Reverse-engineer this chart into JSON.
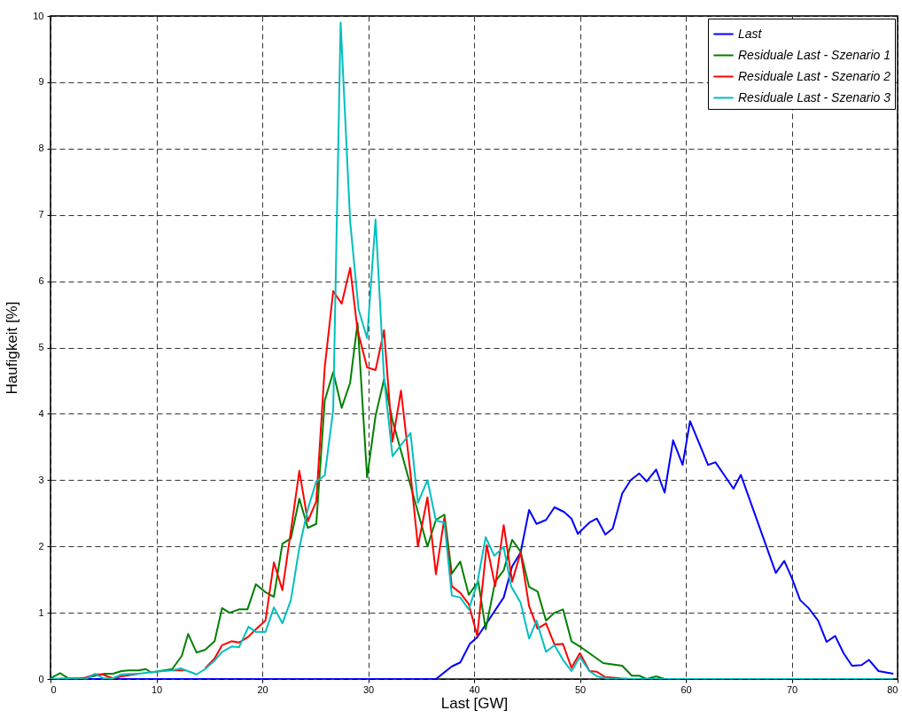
{
  "chart_data": {
    "type": "line",
    "xlabel": "Last [GW]",
    "ylabel": "Haufigkeit [%]",
    "xlim": [
      0,
      80
    ],
    "ylim": [
      0,
      10
    ],
    "xticks": [
      0,
      10,
      20,
      30,
      40,
      50,
      60,
      70,
      80
    ],
    "yticks": [
      0,
      1,
      2,
      3,
      4,
      5,
      6,
      7,
      8,
      9,
      10
    ],
    "grid": true,
    "legend": "top right",
    "line_style": "solid",
    "series": [
      {
        "name": "Last",
        "color": "#0000ff",
        "x": [
          0,
          36.4,
          37.9,
          38.7,
          39.6,
          40.3,
          42.8,
          43.6,
          44.4,
          45.2,
          45.9,
          46.8,
          47.6,
          48.5,
          49.2,
          49.8,
          50.9,
          51.6,
          52.4,
          53.1,
          54.0,
          54.8,
          55.6,
          56.3,
          57.2,
          58.0,
          58.8,
          59.7,
          60.4,
          62.1,
          62.8,
          63.7,
          64.5,
          65.2,
          68.5,
          69.3,
          70.0,
          70.8,
          71.6,
          72.5,
          73.3,
          74.1,
          74.9,
          75.7,
          76.6,
          77.3,
          78.2,
          79.6
        ],
        "values": [
          0,
          0,
          0.19,
          0.25,
          0.53,
          0.63,
          1.23,
          1.7,
          1.91,
          2.55,
          2.34,
          2.4,
          2.59,
          2.52,
          2.42,
          2.19,
          2.36,
          2.42,
          2.18,
          2.27,
          2.8,
          3.0,
          3.1,
          2.98,
          3.16,
          2.81,
          3.6,
          3.23,
          3.89,
          3.23,
          3.27,
          3.06,
          2.87,
          3.08,
          1.6,
          1.78,
          1.53,
          1.19,
          1.07,
          0.88,
          0.56,
          0.65,
          0.39,
          0.2,
          0.21,
          0.29,
          0.12,
          0.08
        ]
      },
      {
        "name": "Residuale Last - Szenario 1",
        "color": "#008000",
        "x": [
          0,
          0.9,
          1.7,
          3.2,
          4.2,
          5.1,
          5.9,
          6.7,
          7.4,
          8.3,
          9.0,
          9.5,
          11.5,
          12.4,
          13.0,
          13.8,
          14.6,
          15.5,
          16.2,
          16.9,
          17.8,
          18.6,
          19.4,
          20.3,
          21.1,
          21.9,
          22.7,
          23.5,
          24.3,
          25.1,
          25.9,
          26.7,
          27.5,
          28.3,
          29.0,
          29.9,
          30.7,
          31.5,
          32.3,
          35.6,
          36.4,
          37.2,
          37.9,
          38.7,
          39.5,
          40.4,
          41.1,
          42.0,
          42.8,
          43.6,
          44.4,
          45.2,
          46.0,
          46.8,
          47.6,
          48.4,
          49.2,
          50.1,
          52.2,
          54.0,
          54.9,
          55.6,
          56.3,
          57.2,
          58.0,
          79.6
        ],
        "values": [
          0.01,
          0.09,
          0.01,
          0.01,
          0.05,
          0.08,
          0.08,
          0.12,
          0.13,
          0.13,
          0.15,
          0.1,
          0.15,
          0.35,
          0.68,
          0.4,
          0.44,
          0.57,
          1.07,
          1.0,
          1.05,
          1.05,
          1.43,
          1.31,
          1.24,
          2.04,
          2.12,
          2.72,
          2.28,
          2.34,
          4.2,
          4.63,
          4.09,
          4.47,
          5.37,
          3.04,
          3.97,
          4.52,
          3.9,
          2.0,
          2.4,
          2.48,
          1.59,
          1.77,
          1.27,
          1.47,
          0.75,
          1.47,
          1.64,
          2.1,
          1.92,
          1.39,
          1.32,
          0.88,
          1.0,
          1.05,
          0.57,
          0.48,
          0.24,
          0.2,
          0.05,
          0.05,
          0,
          0.04,
          0,
          0
        ]
      },
      {
        "name": "Residuale Last - Szenario 2",
        "color": "#ff0000",
        "x": [
          0,
          2.8,
          3.3,
          4.2,
          4.9,
          5.9,
          6.7,
          8.3,
          9.9,
          11.5,
          12.8,
          13.8,
          14.6,
          15.5,
          16.2,
          17.1,
          17.8,
          18.7,
          19.4,
          20.3,
          21.1,
          21.9,
          22.7,
          23.5,
          24.3,
          25.1,
          25.9,
          26.7,
          27.5,
          28.3,
          29.0,
          29.9,
          30.7,
          31.5,
          32.3,
          33.1,
          34.0,
          34.7,
          35.6,
          36.4,
          37.2,
          37.9,
          38.7,
          39.5,
          40.3,
          41.2,
          42.0,
          42.8,
          43.6,
          44.4,
          45.2,
          46.0,
          46.8,
          47.6,
          48.4,
          49.2,
          50.0,
          50.9,
          51.6,
          52.4,
          53.8,
          54.9,
          79.6
        ],
        "values": [
          0,
          0.01,
          0.02,
          0.07,
          0.07,
          0.01,
          0.04,
          0.08,
          null,
          0.13,
          0.13,
          null,
          0.16,
          0.31,
          0.51,
          0.57,
          0.55,
          0.64,
          0.75,
          0.88,
          1.76,
          1.34,
          2.23,
          3.14,
          2.38,
          2.68,
          4.7,
          5.85,
          5.66,
          6.2,
          5.26,
          4.7,
          4.66,
          5.26,
          3.58,
          4.35,
          3.1,
          2.0,
          2.74,
          1.58,
          2.43,
          1.4,
          1.3,
          1.13,
          0.65,
          2.02,
          1.4,
          2.32,
          1.47,
          1.91,
          1.1,
          0.76,
          0.84,
          0.52,
          0.53,
          0.17,
          0.39,
          0.12,
          0.11,
          0.03,
          0.01,
          0,
          0
        ]
      },
      {
        "name": "Residuale Last - Szenario 3",
        "color": "#00bfbf",
        "x": [
          0,
          1.7,
          3.3,
          4.2,
          5.0,
          5.9,
          6.7,
          8.3,
          9.9,
          11.5,
          12.3,
          12.8,
          13.8,
          14.6,
          15.5,
          16.2,
          17.1,
          17.8,
          18.7,
          19.4,
          20.3,
          21.1,
          21.9,
          22.7,
          23.5,
          24.3,
          25.1,
          25.9,
          26.7,
          27.4,
          28.3,
          29.1,
          29.9,
          30.7,
          31.5,
          32.3,
          33.1,
          34.0,
          34.7,
          35.6,
          36.4,
          37.2,
          37.9,
          38.7,
          39.5,
          40.3,
          41.1,
          41.9,
          42.8,
          43.5,
          44.4,
          45.2,
          45.9,
          46.8,
          47.6,
          48.4,
          49.2,
          50.0,
          50.9,
          51.6,
          53.0,
          79.6
        ],
        "values": [
          0,
          0.01,
          0,
          0.08,
          0.01,
          0.01,
          0.07,
          0.08,
          0.11,
          0.13,
          0.16,
          0.13,
          0.07,
          0.15,
          0.28,
          0.41,
          0.49,
          0.48,
          0.79,
          0.71,
          0.71,
          1.08,
          0.84,
          1.19,
          1.98,
          2.56,
          2.98,
          3.07,
          4.06,
          9.9,
          6.9,
          5.57,
          5.14,
          6.93,
          4.54,
          3.36,
          3.53,
          3.71,
          2.66,
          3.0,
          2.39,
          2.36,
          1.26,
          1.23,
          1.05,
          1.44,
          2.14,
          1.86,
          1.99,
          1.4,
          1.15,
          0.61,
          0.88,
          0.41,
          0.51,
          0.29,
          0.12,
          0.33,
          0.12,
          0.04,
          0,
          0
        ]
      }
    ]
  }
}
